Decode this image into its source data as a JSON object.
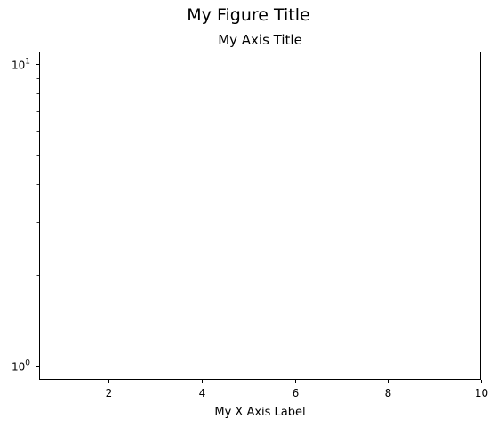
{
  "figure_title": "My Figure Title",
  "chart_data": {
    "type": "line",
    "title": "My Axis Title",
    "xlabel": "My X Axis Label",
    "ylabel": "",
    "x": [],
    "series": [],
    "xlim": [
      0.5,
      10
    ],
    "ylim": [
      0.9,
      11
    ],
    "xscale": "linear",
    "yscale": "log",
    "x_ticks": [
      2,
      4,
      6,
      8,
      10
    ],
    "x_tick_labels": [
      "2",
      "4",
      "6",
      "8",
      "10"
    ],
    "y_major_ticks": [
      1,
      10
    ],
    "y_minor_ticks": [
      2,
      3,
      4,
      5,
      6,
      7,
      8,
      9
    ],
    "y_tick_labels": [
      {
        "base": "10",
        "exp": "0"
      },
      {
        "base": "10",
        "exp": "1"
      }
    ],
    "grid": false,
    "legend": "none"
  }
}
